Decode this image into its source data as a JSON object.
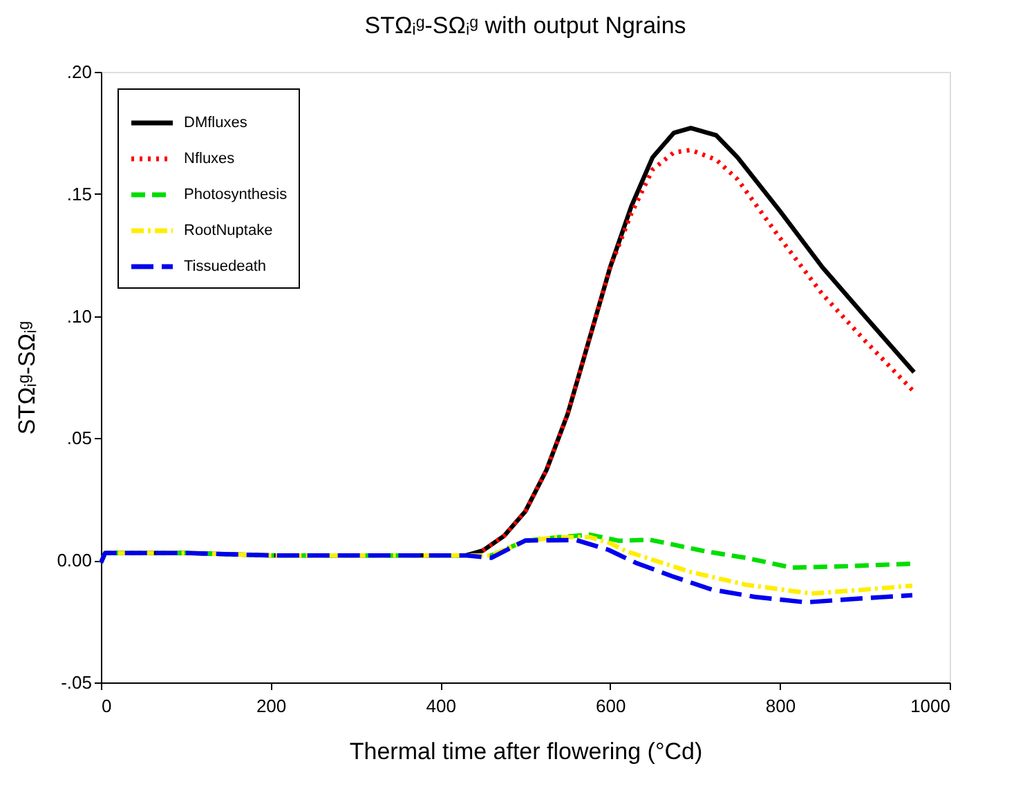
{
  "chart_data": {
    "type": "line",
    "title": "STΩᵢᵍ-SΩᵢᵍ with output Ngrains",
    "xlabel": "Thermal time after flowering (°Cd)",
    "ylabel": "STΩᵢᵍ-SΩᵢᵍ",
    "xlim": [
      0,
      1000
    ],
    "xticks": [
      0,
      200,
      400,
      600,
      800,
      1000
    ],
    "ylim": [
      -0.05,
      0.2
    ],
    "yticks": [
      {
        "value": -0.05,
        "label": "-.05"
      },
      {
        "value": 0,
        "label": "0.00"
      },
      {
        "value": 0.05,
        "label": ".05"
      },
      {
        "value": 0.1,
        "label": ".10"
      },
      {
        "value": 0.15,
        "label": ".15"
      },
      {
        "value": 0.2,
        "label": ".20"
      }
    ],
    "grid": false,
    "legend": "top left",
    "marker": "none",
    "series": [
      {
        "name": "DMfluxes",
        "color": "#000000",
        "line_style": "solid",
        "x": [
          0,
          5,
          100,
          200,
          300,
          430,
          450,
          475,
          500,
          525,
          550,
          575,
          600,
          625,
          650,
          675,
          695,
          725,
          750,
          800,
          850,
          900,
          958
        ],
        "values": [
          -0.001,
          0.003,
          0.003,
          0.002,
          0.002,
          0.002,
          0.004,
          0.01,
          0.02,
          0.037,
          0.06,
          0.09,
          0.12,
          0.145,
          0.165,
          0.175,
          0.177,
          0.174,
          0.165,
          0.143,
          0.12,
          0.1,
          0.077
        ]
      },
      {
        "name": "Nfluxes",
        "color": "#ff0000",
        "line_style": "dotted",
        "x": [
          450,
          475,
          500,
          525,
          550,
          575,
          600,
          625,
          650,
          675,
          695,
          725,
          750,
          800,
          850,
          900,
          958
        ],
        "values": [
          0.004,
          0.01,
          0.02,
          0.037,
          0.06,
          0.09,
          0.12,
          0.142,
          0.16,
          0.167,
          0.168,
          0.164,
          0.156,
          0.132,
          0.109,
          0.09,
          0.069
        ]
      },
      {
        "name": "Photosynthesis",
        "color": "#00dd00",
        "line_style": "dashed",
        "x": [
          0,
          5,
          100,
          200,
          300,
          430,
          460,
          500,
          540,
          576,
          610,
          647,
          712,
          760,
          814,
          870,
          956
        ],
        "values": [
          -0.001,
          0.003,
          0.003,
          0.002,
          0.002,
          0.002,
          0.002,
          0.008,
          0.0095,
          0.0105,
          0.008,
          0.0084,
          0.0037,
          0.001,
          -0.003,
          -0.0025,
          -0.0014
        ]
      },
      {
        "name": "RootNuptake",
        "color": "#ffee00",
        "line_style": "dashdot",
        "x": [
          0,
          5,
          100,
          200,
          300,
          430,
          460,
          500,
          540,
          576,
          600,
          619,
          695,
          760,
          837,
          900,
          956
        ],
        "values": [
          -0.001,
          0.003,
          0.003,
          0.002,
          0.002,
          0.002,
          0.002,
          0.008,
          0.0095,
          0.0095,
          0.007,
          0.0037,
          -0.0048,
          -0.01,
          -0.0136,
          -0.012,
          -0.0104
        ]
      },
      {
        "name": "Tissuedeath",
        "color": "#0000ee",
        "line_style": "longdash",
        "x": [
          0,
          5,
          100,
          200,
          300,
          430,
          460,
          500,
          560,
          598,
          630,
          673,
          720,
          771,
          831,
          900,
          956
        ],
        "values": [
          -0.001,
          0.003,
          0.003,
          0.002,
          0.002,
          0.002,
          0.001,
          0.0081,
          0.0083,
          0.0043,
          -0.001,
          -0.0065,
          -0.012,
          -0.015,
          -0.0172,
          -0.0155,
          -0.0143
        ]
      }
    ]
  }
}
